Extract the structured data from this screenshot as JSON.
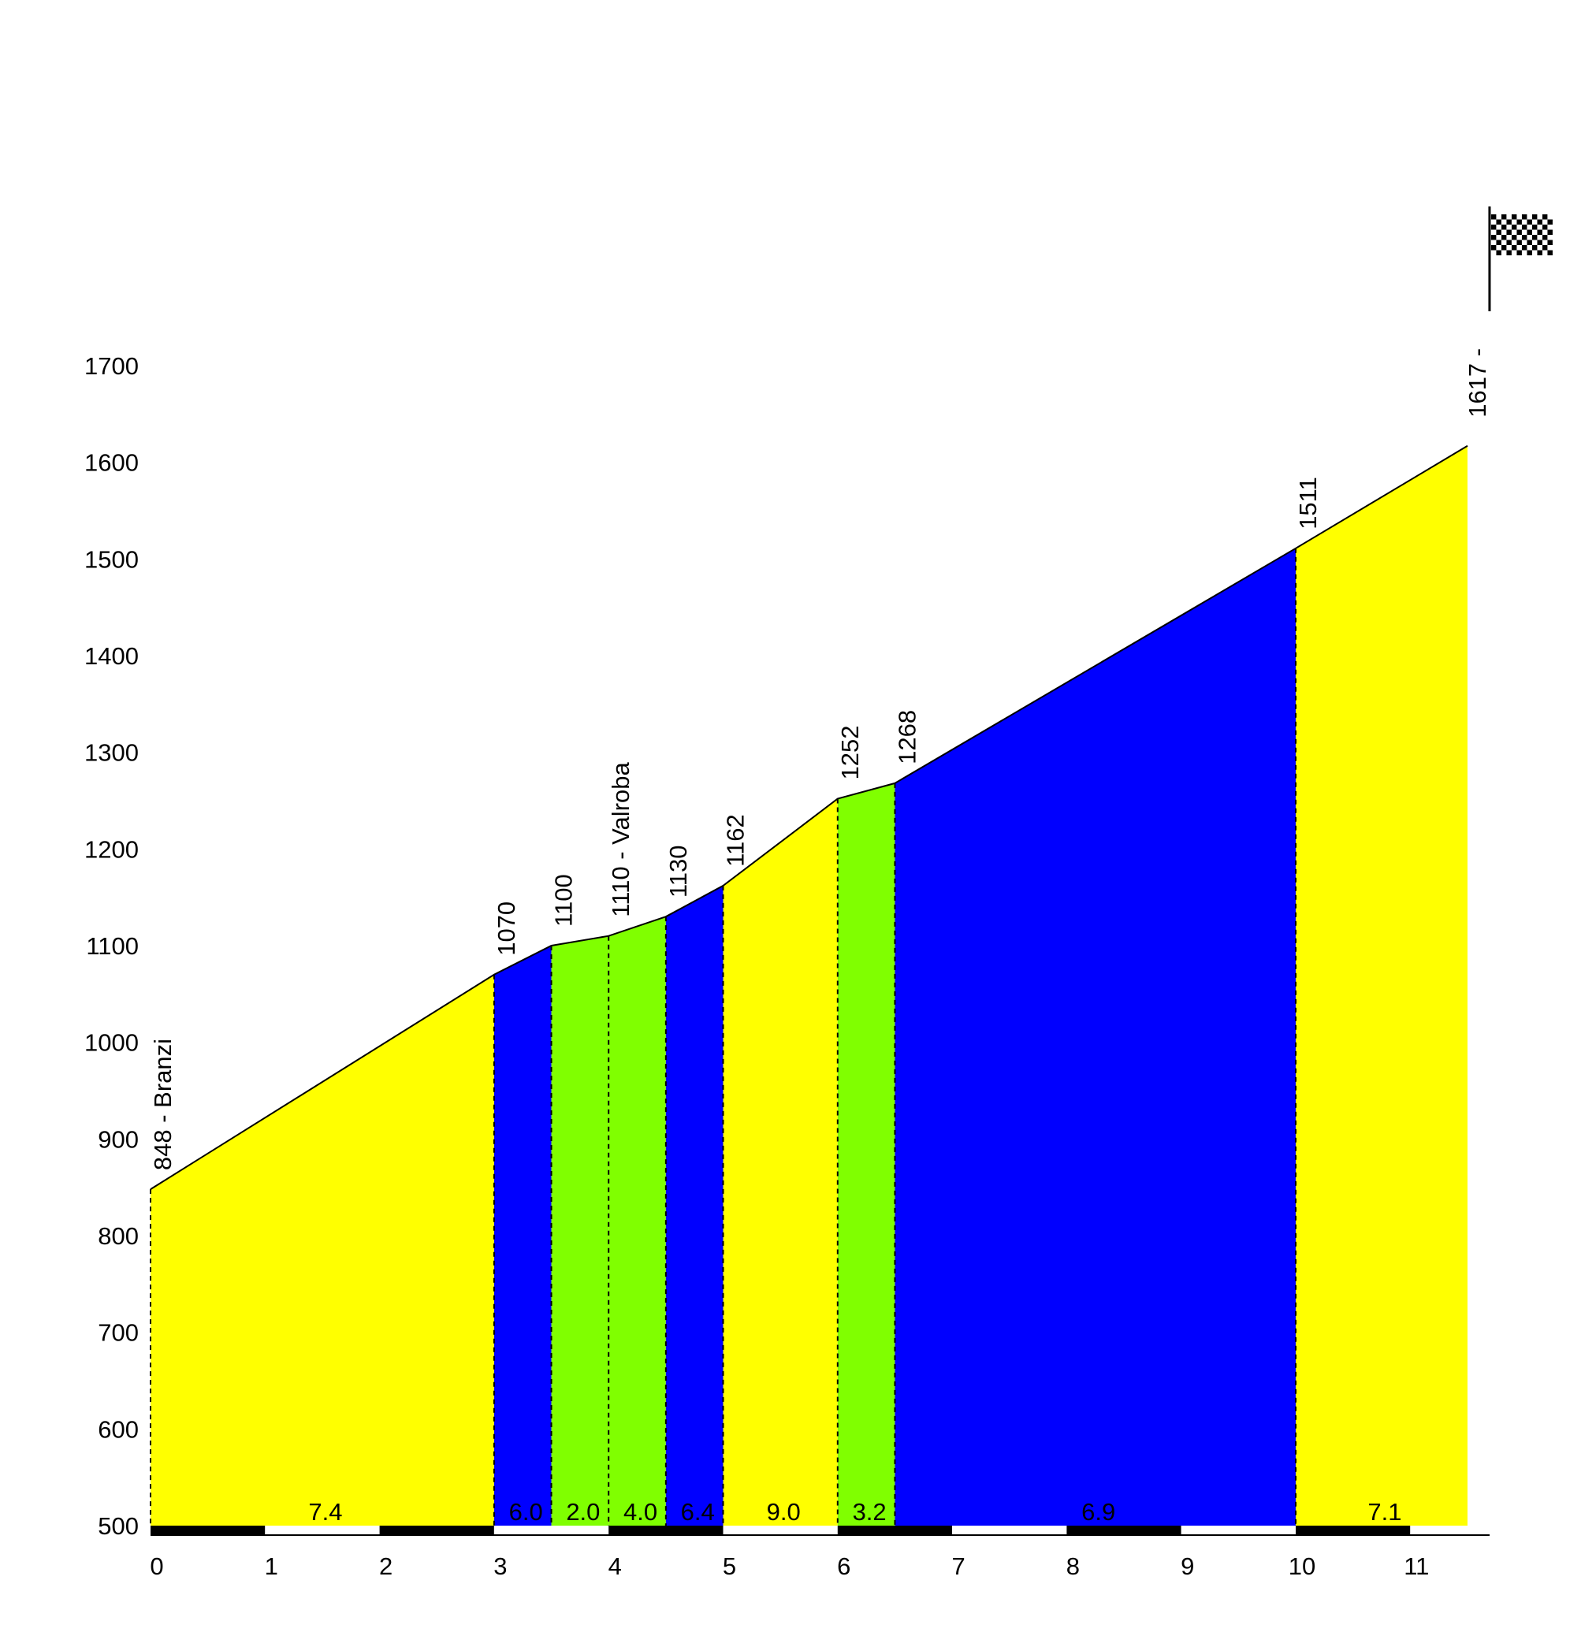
{
  "chart_data": {
    "type": "area",
    "title": "",
    "xlabel": "",
    "ylabel": "",
    "xlim": [
      0,
      11.5
    ],
    "ylim": [
      500,
      1700
    ],
    "y_ticks": [
      "500",
      "600",
      "700",
      "800",
      "900",
      "1000",
      "1100",
      "1200",
      "1300",
      "1400",
      "1500",
      "1600",
      "1700"
    ],
    "x_ticks": [
      "0",
      "1",
      "2",
      "3",
      "4",
      "5",
      "6",
      "7",
      "8",
      "9",
      "10",
      "11"
    ],
    "segments": [
      {
        "x0": 0.0,
        "x1": 3.0,
        "color": "#ffff00",
        "grade": "7.4"
      },
      {
        "x0": 3.0,
        "x1": 3.5,
        "color": "#0000ff",
        "grade": "6.0"
      },
      {
        "x0": 3.5,
        "x1": 4.0,
        "color": "#80ff00",
        "grade": "2.0"
      },
      {
        "x0": 4.0,
        "x1": 4.5,
        "color": "#80ff00",
        "grade": "4.0"
      },
      {
        "x0": 4.5,
        "x1": 5.0,
        "color": "#0000ff",
        "grade": "6.4"
      },
      {
        "x0": 5.0,
        "x1": 6.0,
        "color": "#ffff00",
        "grade": "9.0"
      },
      {
        "x0": 6.0,
        "x1": 6.5,
        "color": "#80ff00",
        "grade": "3.2"
      },
      {
        "x0": 6.5,
        "x1": 10.0,
        "color": "#0000ff",
        "grade": "6.9"
      },
      {
        "x0": 10.0,
        "x1": 11.5,
        "color": "#ffff00",
        "grade": "7.1"
      }
    ],
    "profile": [
      {
        "x": 0.0,
        "y": 848,
        "label": "848 - Branzi"
      },
      {
        "x": 3.0,
        "y": 1070,
        "label": "1070"
      },
      {
        "x": 3.5,
        "y": 1100,
        "label": "1100"
      },
      {
        "x": 4.0,
        "y": 1110,
        "label": "1110 - Valroba"
      },
      {
        "x": 4.5,
        "y": 1130,
        "label": "1130"
      },
      {
        "x": 5.0,
        "y": 1162,
        "label": "1162"
      },
      {
        "x": 6.0,
        "y": 1252,
        "label": "1252"
      },
      {
        "x": 6.5,
        "y": 1268,
        "label": "1268"
      },
      {
        "x": 10.0,
        "y": 1511,
        "label": "1511"
      },
      {
        "x": 11.5,
        "y": 1617,
        "label": "1617 -"
      }
    ],
    "colors": {
      "yellow": "#ffff00",
      "blue": "#0000ff",
      "green": "#80ff00",
      "outline": "#000000"
    },
    "icon": "checkered-flag-icon"
  }
}
